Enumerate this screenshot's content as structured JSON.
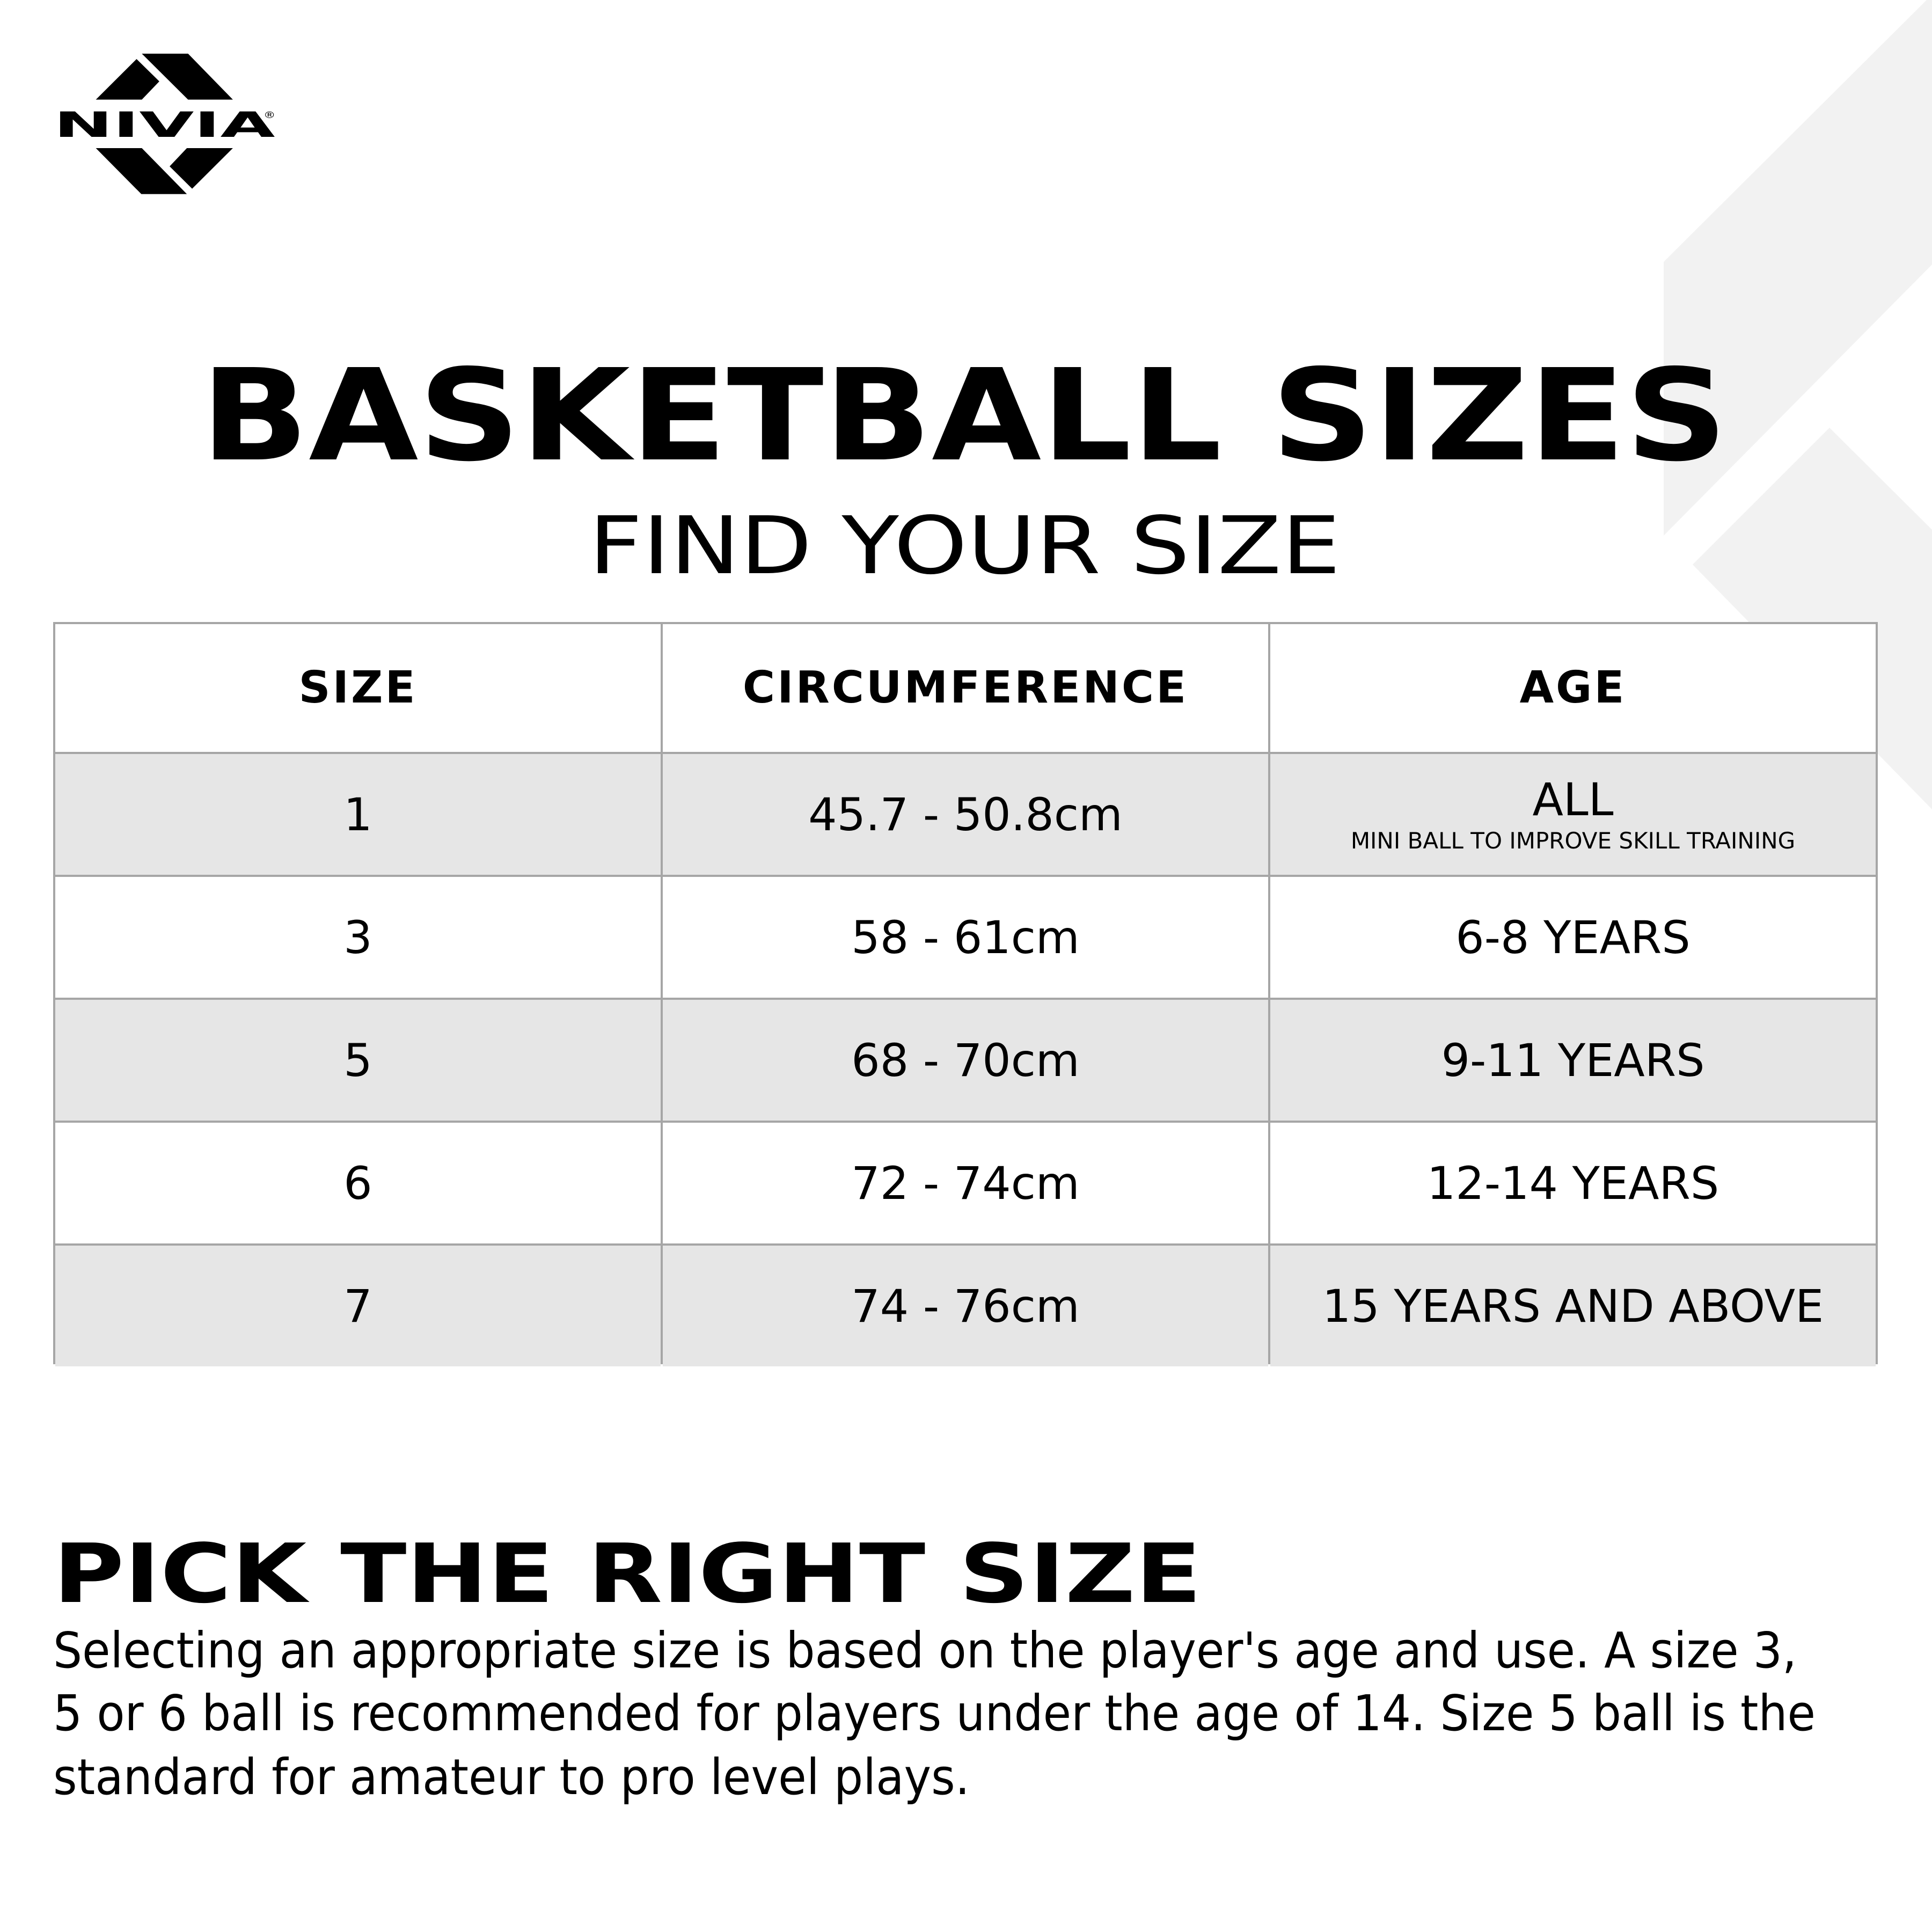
{
  "logo": {
    "text": "NIVIA",
    "registered": "®"
  },
  "title": "BASKETBALL SIZES",
  "subtitle": "FIND YOUR SIZE",
  "table": {
    "headers": [
      "SIZE",
      "CIRCUMFERENCE",
      "AGE"
    ],
    "rows": [
      {
        "size": "1",
        "circumference": "45.7 - 50.8cm",
        "age": "ALL",
        "age_note": "MINI BALL TO IMPROVE SKILL TRAINING"
      },
      {
        "size": "3",
        "circumference": "58 - 61cm",
        "age": "6-8 YEARS"
      },
      {
        "size": "5",
        "circumference": "68 - 70cm",
        "age": "9-11 YEARS"
      },
      {
        "size": "6",
        "circumference": "72 - 74cm",
        "age": "12-14 YEARS"
      },
      {
        "size": "7",
        "circumference": "74 - 76cm",
        "age": "15 YEARS AND ABOVE"
      }
    ]
  },
  "section": {
    "heading": "PICK THE RIGHT SIZE",
    "paragraph_lines": [
      "Selecting an appropriate size is based on the player's age and use. A size 3,",
      "5 or 6 ball is recommended for players under the age of 14.  Size 5 ball is the",
      "standard for amateur to pro level plays."
    ]
  },
  "colors": {
    "shaded_row": "#e6e6e6",
    "border": "#a6a6a6",
    "background_shape": "#f2f2f2",
    "text": "#000000"
  }
}
